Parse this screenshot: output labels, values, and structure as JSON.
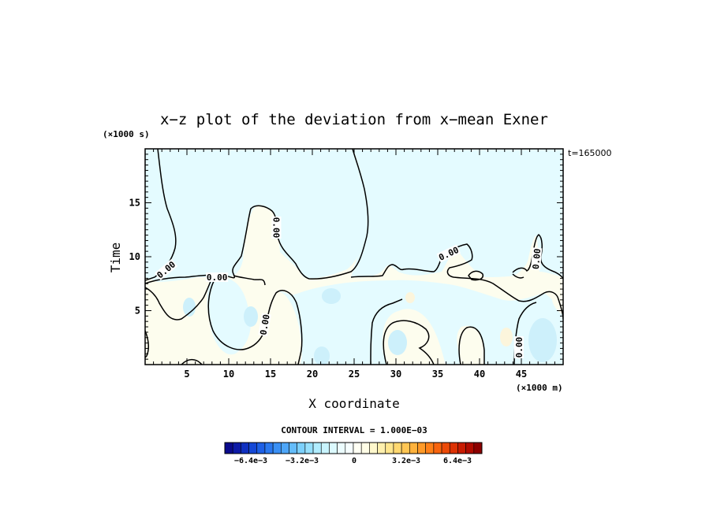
{
  "chart_data": {
    "type": "contour",
    "title": "x−z plot of the deviation from x−mean Exner",
    "xlabel": "X coordinate",
    "ylabel": "Time",
    "x_unit": "(×1000 m)",
    "y_unit": "(×1000 s)",
    "time_label": "t=165000",
    "xlim": [
      0,
      50
    ],
    "ylim": [
      0,
      20
    ],
    "x_ticks": [
      "5",
      "10",
      "15",
      "20",
      "25",
      "30",
      "35",
      "40",
      "45"
    ],
    "y_ticks": [
      "5",
      "10",
      "15"
    ],
    "contour_interval_text": "CONTOUR INTERVAL = 1.000E−03",
    "contour_labels": [
      {
        "text": "0.00",
        "x": 2.5,
        "y": 8.8,
        "angle": -40
      },
      {
        "text": "0.00",
        "x": 8.6,
        "y": 8.1,
        "angle": 0
      },
      {
        "text": "0.00",
        "x": 15.7,
        "y": 12.7,
        "angle": 90
      },
      {
        "text": "0.00",
        "x": 14.3,
        "y": 3.7,
        "angle": -80
      },
      {
        "text": "0.00",
        "x": 36.3,
        "y": 10.3,
        "angle": -25
      },
      {
        "text": "0.00",
        "x": 46.8,
        "y": 9.8,
        "angle": -85
      },
      {
        "text": "0.00",
        "x": 44.7,
        "y": 1.6,
        "angle": -90
      }
    ],
    "colorbar": {
      "ticks": [
        "−6.4e−3",
        "−3.2e−3",
        "0",
        "3.2e−3",
        "6.4e−3"
      ],
      "colors": [
        "#0a0a8c",
        "#0d1aa6",
        "#1030c0",
        "#1548d6",
        "#1e60e6",
        "#2a78f0",
        "#3a90f5",
        "#4ea6f8",
        "#64bcfa",
        "#7cd0fc",
        "#96e0fd",
        "#b0ecfe",
        "#c8f4fe",
        "#dcfaff",
        "#ecfdff",
        "#f6feff",
        "#fffff4",
        "#fffde6",
        "#fff8cc",
        "#fff0ae",
        "#ffe68e",
        "#ffd870",
        "#ffc654",
        "#ffb23c",
        "#ff9a28",
        "#ff8018",
        "#f8640e",
        "#ec4a08",
        "#dc3204",
        "#c81c02",
        "#b00c00",
        "#8c0000"
      ]
    },
    "colors": {
      "positive_fill": "#fdfdee",
      "negative_fill": "#e4fbff",
      "light_blue": "#cdf0fb",
      "light_yellow": "#fcf5dc",
      "contour_line": "#000000"
    }
  }
}
